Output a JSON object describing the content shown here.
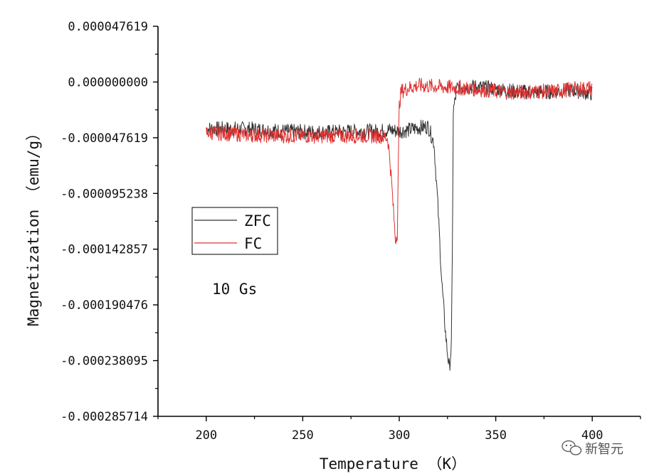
{
  "chart_data": {
    "type": "line",
    "xlabel": "Temperature （K）",
    "ylabel": "Magnetization （emu/g）",
    "xlim": [
      175,
      425
    ],
    "ylim": [
      -0.000285714,
      4.7619e-05
    ],
    "x_ticks": [
      "200",
      "250",
      "300",
      "350",
      "400"
    ],
    "x_tick_values": [
      200,
      250,
      300,
      350,
      400
    ],
    "y_ticks": [
      "0.000047619",
      "0.000000000",
      "-0.000047619",
      "-0.000095238",
      "-0.000142857",
      "-0.000190476",
      "-0.000238095",
      "-0.000285714"
    ],
    "y_tick_values": [
      4.7619e-05,
      0.0,
      -4.7619e-05,
      -9.5238e-05,
      -0.000142857,
      -0.000190476,
      -0.000238095,
      -0.000285714
    ],
    "grid": false,
    "legend_position": "left-middle",
    "annotation": "10 Gs",
    "series": [
      {
        "name": "ZFC",
        "color": "#333333",
        "x": [
          200,
          220,
          240,
          260,
          280,
          290,
          295,
          300,
          305,
          310,
          315,
          318,
          320,
          322,
          324,
          325,
          326,
          327,
          327.5,
          328,
          330,
          340,
          350,
          360,
          370,
          380,
          390,
          400
        ],
        "y": [
          -4e-05,
          -4e-05,
          -4.2e-05,
          -4.3e-05,
          -4.2e-05,
          -4.2e-05,
          -4.1e-05,
          -4.2e-05,
          -4.1e-05,
          -3.9e-05,
          -3.8e-05,
          -5.2e-05,
          -0.000105,
          -0.00017,
          -0.000215,
          -0.000232,
          -0.000245,
          -0.000225,
          -0.00015,
          -2.5e-05,
          -5e-06,
          -4e-06,
          -6e-06,
          -8e-06,
          -9e-06,
          -8e-06,
          -7e-06,
          -1e-05
        ]
      },
      {
        "name": "FC",
        "color": "#e03030",
        "x": [
          200,
          220,
          240,
          260,
          280,
          290,
          294,
          295,
          296,
          297,
          298,
          299,
          300,
          301,
          305,
          310,
          320,
          330,
          340,
          350,
          360,
          370,
          380,
          390,
          400
        ],
        "y": [
          -4.3e-05,
          -4.5e-05,
          -4.6e-05,
          -4.6e-05,
          -4.6e-05,
          -4.6e-05,
          -4.8e-05,
          -6.3e-05,
          -8.5e-05,
          -0.00011,
          -0.000135,
          -0.000128,
          -2e-05,
          -8e-06,
          -5e-06,
          -3e-06,
          -4e-06,
          -5e-06,
          -6e-06,
          -8e-06,
          -9e-06,
          -8e-06,
          -8e-06,
          -6e-06,
          -5e-06
        ]
      }
    ]
  },
  "watermark": {
    "icon": "wechat-icon",
    "text": "新智元"
  }
}
